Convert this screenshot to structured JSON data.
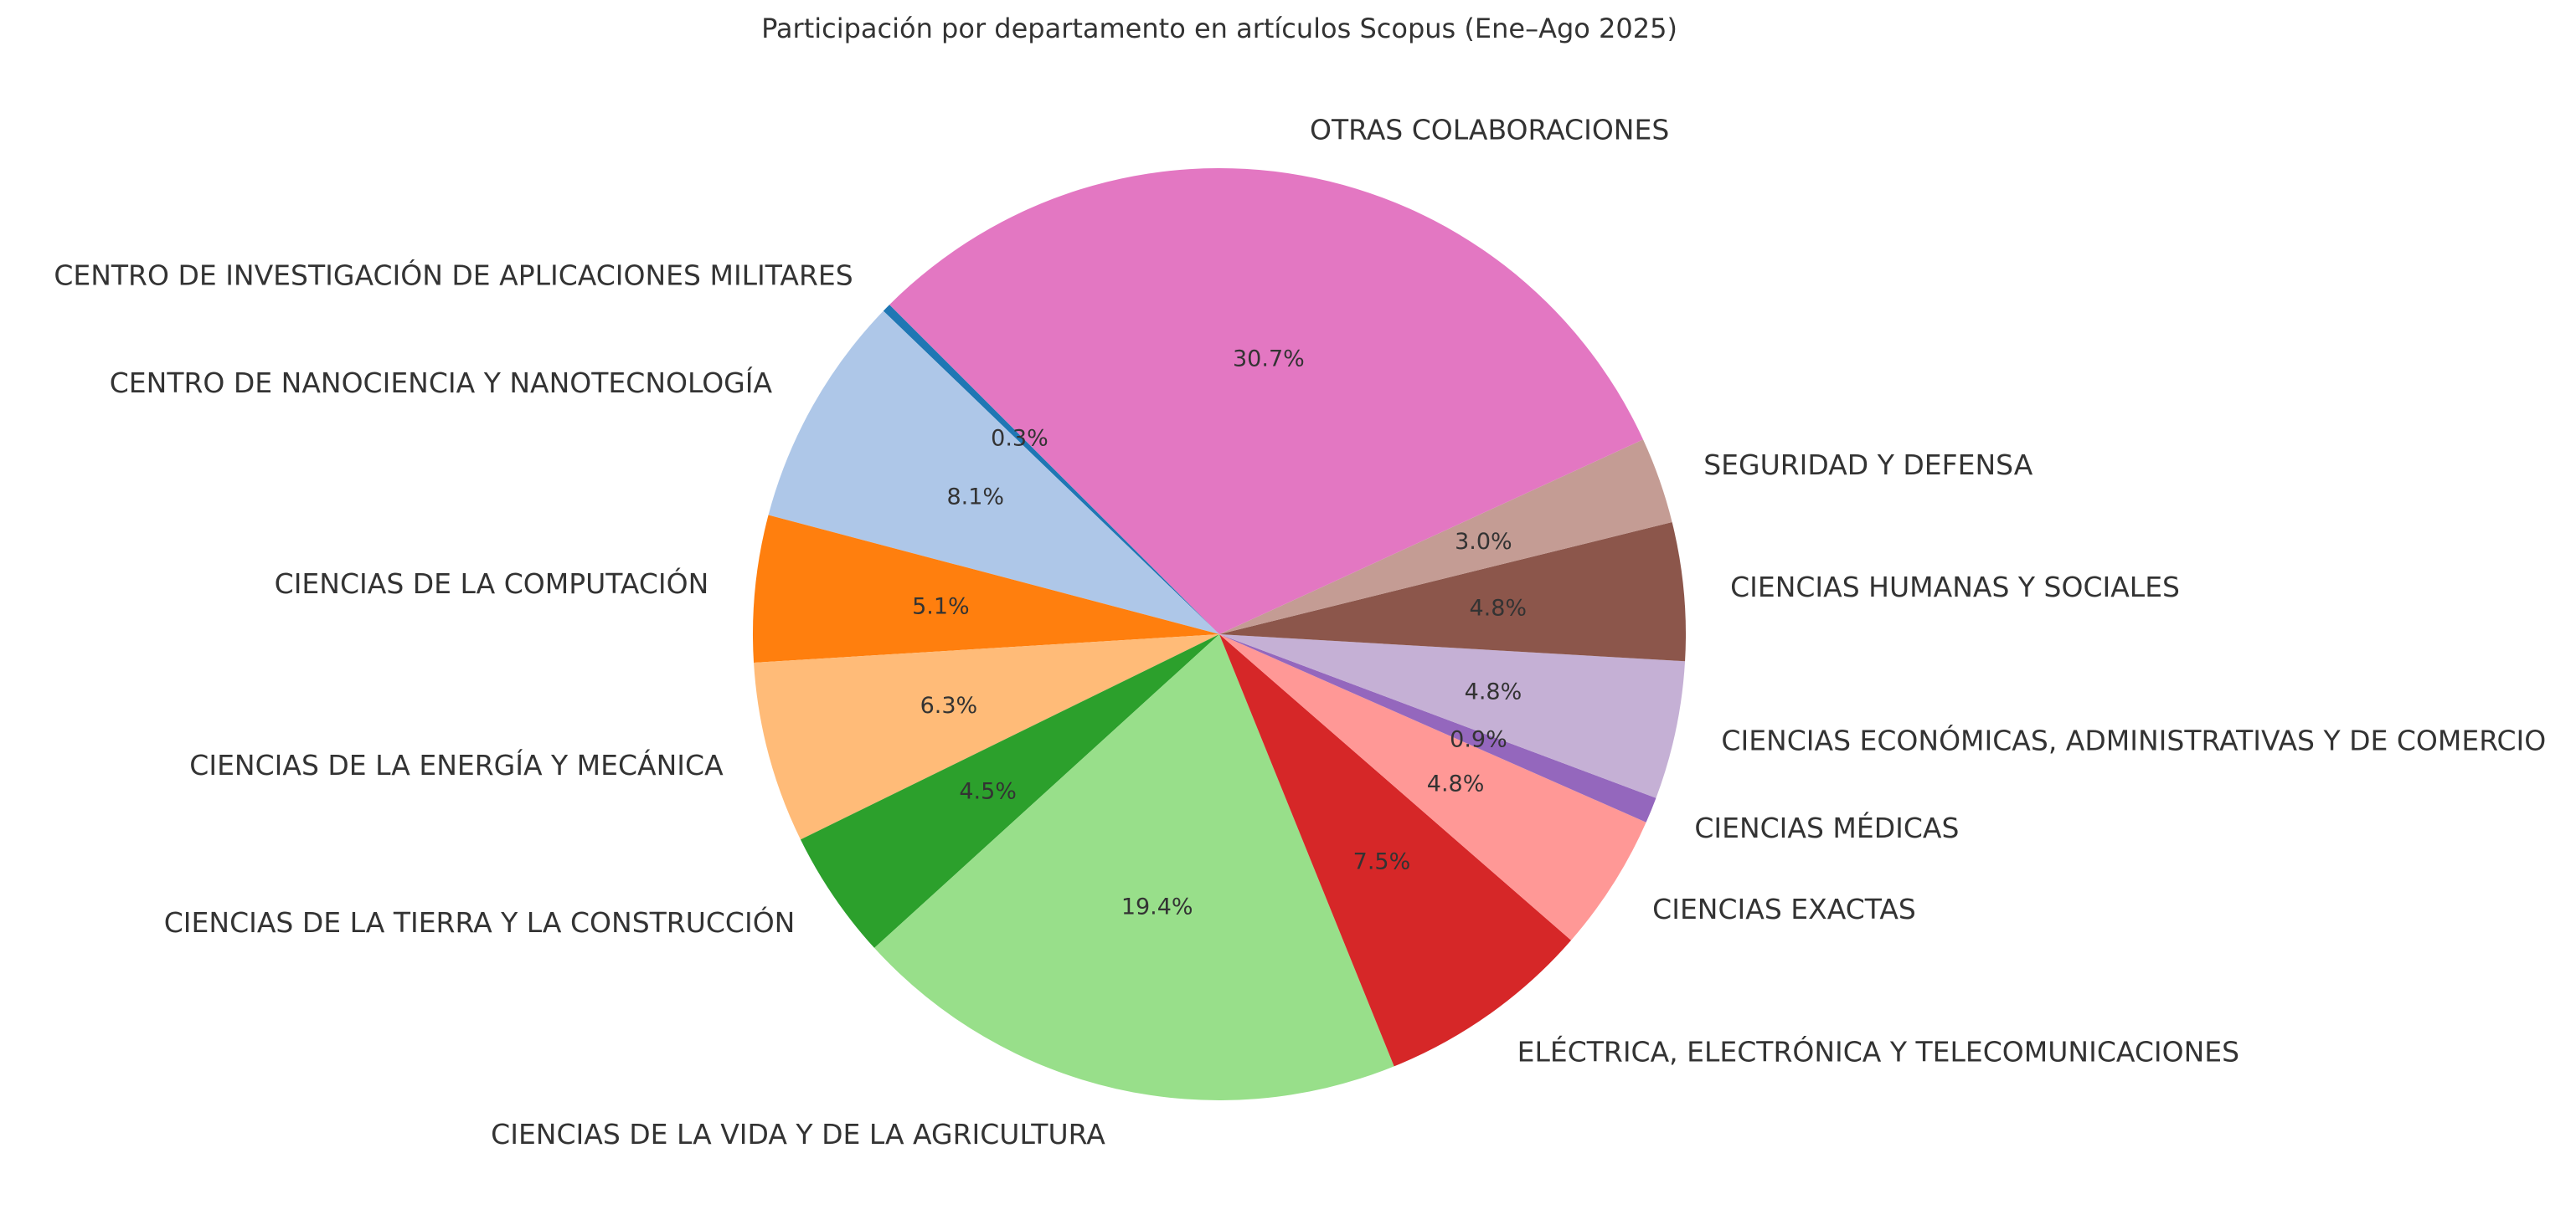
{
  "chart_data": {
    "type": "pie",
    "title": "Participación por departamento en artículos Scopus (Ene–Ago 2025)",
    "start_angle_deg": 135,
    "direction": "counterclockwise",
    "slices": [
      {
        "label": "CENTRO DE INVESTIGACIÓN DE APLICACIONES MILITARES",
        "value": 0.3,
        "pct_text": "0.3%",
        "color": "#1f77b4"
      },
      {
        "label": "CENTRO DE NANOCIENCIA Y NANOTECNOLOGÍA",
        "value": 8.1,
        "pct_text": "8.1%",
        "color": "#aec7e8"
      },
      {
        "label": "CIENCIAS DE LA COMPUTACIÓN",
        "value": 5.1,
        "pct_text": "5.1%",
        "color": "#ff7f0e"
      },
      {
        "label": "CIENCIAS DE LA ENERGÍA Y MECÁNICA",
        "value": 6.3,
        "pct_text": "6.3%",
        "color": "#ffbb78"
      },
      {
        "label": "CIENCIAS DE LA TIERRA Y LA CONSTRUCCIÓN",
        "value": 4.5,
        "pct_text": "4.5%",
        "color": "#2ca02c"
      },
      {
        "label": "CIENCIAS DE LA VIDA Y DE LA AGRICULTURA",
        "value": 19.4,
        "pct_text": "19.4%",
        "color": "#98df8a"
      },
      {
        "label": "ELÉCTRICA, ELECTRÓNICA Y TELECOMUNICACIONES",
        "value": 7.5,
        "pct_text": "7.5%",
        "color": "#d62728"
      },
      {
        "label": "CIENCIAS EXACTAS",
        "value": 4.8,
        "pct_text": "4.8%",
        "color": "#ff9896"
      },
      {
        "label": "CIENCIAS MÉDICAS",
        "value": 0.9,
        "pct_text": "0.9%",
        "color": "#9467bd"
      },
      {
        "label": "CIENCIAS ECONÓMICAS, ADMINISTRATIVAS Y DE COMERCIO",
        "value": 4.8,
        "pct_text": "4.8%",
        "color": "#c5b0d5"
      },
      {
        "label": "CIENCIAS HUMANAS Y SOCIALES",
        "value": 4.8,
        "pct_text": "4.8%",
        "color": "#8c564b"
      },
      {
        "label": "SEGURIDAD Y DEFENSA",
        "value": 3.0,
        "pct_text": "3.0%",
        "color": "#c49c94"
      },
      {
        "label": "OTRAS COLABORACIONES",
        "value": 30.7,
        "pct_text": "30.7%",
        "color": "#e377c2"
      }
    ]
  }
}
